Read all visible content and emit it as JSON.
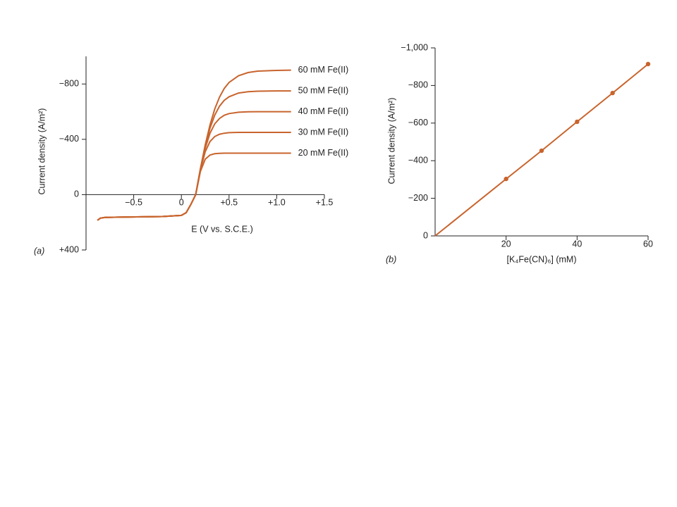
{
  "chart_data": [
    {
      "type": "line",
      "panel": "(a)",
      "x_label": "E (V vs. S.C.E.)",
      "y_label": "Current density (A/m²)",
      "xlim": [
        -1.0,
        1.5
      ],
      "ylim": [
        400,
        -1000
      ],
      "xticks": [
        {
          "value": -0.5,
          "label": "−0.5"
        },
        0,
        {
          "value": 0.5,
          "label": "+0.5"
        },
        {
          "value": 1.0,
          "label": "+1.0"
        },
        {
          "value": 1.5,
          "label": "+1.5"
        }
      ],
      "yticks": [
        {
          "value": -800,
          "label": "−800"
        },
        {
          "value": -400,
          "label": "−400"
        },
        0,
        {
          "value": 400,
          "label": "+400"
        }
      ],
      "x": [
        -0.88,
        -0.85,
        -0.8,
        -0.6,
        -0.4,
        -0.2,
        0,
        0.05,
        0.1,
        0.15,
        0.2,
        0.25,
        0.3,
        0.35,
        0.4,
        0.45,
        0.5,
        0.6,
        0.7,
        0.8,
        1.0,
        1.15
      ],
      "series": [
        {
          "name": "60 mM Fe(II)",
          "color": "#c8642d",
          "values": [
            185,
            170,
            165,
            162,
            160,
            158,
            150,
            130,
            70,
            0,
            -187,
            -359,
            -504,
            -619,
            -705,
            -768,
            -811,
            -860,
            -883,
            -893,
            -898,
            -900
          ]
        },
        {
          "name": "50 mM Fe(II)",
          "color": "#c8642d",
          "values": [
            185,
            170,
            165,
            162,
            160,
            158,
            150,
            130,
            70,
            0,
            -186,
            -350,
            -481,
            -575,
            -640,
            -682,
            -708,
            -735,
            -744,
            -748,
            -750,
            -750
          ]
        },
        {
          "name": "40 mM Fe(II)",
          "color": "#c8642d",
          "values": [
            185,
            170,
            165,
            162,
            160,
            158,
            150,
            130,
            70,
            0,
            -184,
            -336,
            -444,
            -512,
            -551,
            -574,
            -586,
            -596,
            -599,
            -600,
            -600,
            -600
          ]
        },
        {
          "name": "30 mM Fe(II)",
          "color": "#c8642d",
          "values": [
            185,
            170,
            165,
            162,
            160,
            158,
            150,
            130,
            70,
            0,
            -179,
            -310,
            -384,
            -420,
            -437,
            -444,
            -448,
            -450,
            -450,
            -450,
            -450,
            -450
          ]
        },
        {
          "name": "20 mM Fe(II)",
          "color": "#c8642d",
          "values": [
            185,
            170,
            165,
            162,
            160,
            158,
            150,
            130,
            70,
            0,
            -168,
            -256,
            -287,
            -296,
            -299,
            -300,
            -300,
            -300,
            -300,
            -300,
            -300,
            -300
          ]
        }
      ]
    },
    {
      "type": "line",
      "panel": "(b)",
      "x_label": "[K₄Fe(CN)₆] (mM)",
      "y_label": "Current density (A/m²)",
      "xlim": [
        0,
        60
      ],
      "ylim": [
        0,
        -1000
      ],
      "xticks": [
        20,
        40,
        60
      ],
      "yticks": [
        0,
        {
          "value": -200,
          "label": "−200"
        },
        {
          "value": -400,
          "label": "−400"
        },
        {
          "value": -600,
          "label": "−600"
        },
        {
          "value": -800,
          "label": "−800"
        },
        {
          "value": -1000,
          "label": "−1,000"
        }
      ],
      "x": [
        0,
        20,
        30,
        40,
        50,
        60
      ],
      "series": [
        {
          "color": "#c8642d",
          "markers": true,
          "values": [
            0,
            -303,
            -453,
            -607,
            -760,
            -914
          ]
        }
      ]
    }
  ]
}
